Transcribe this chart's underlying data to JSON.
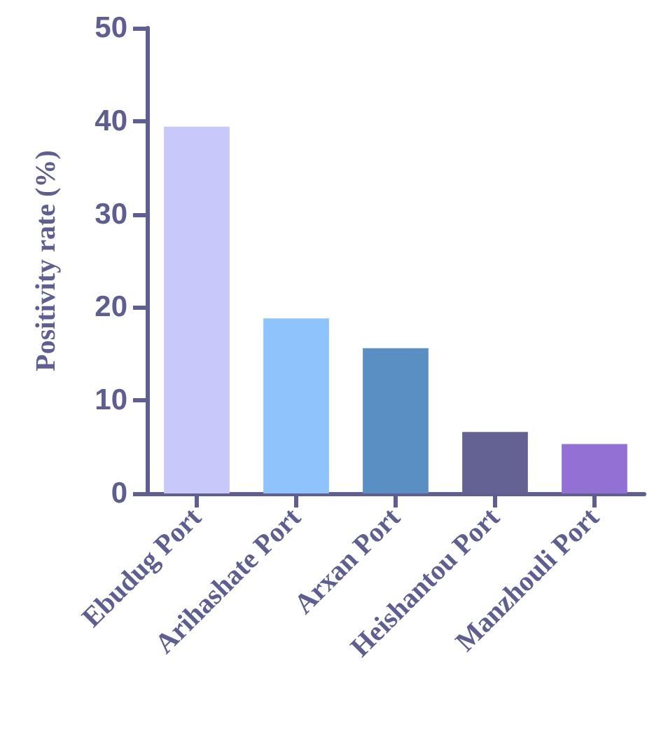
{
  "chart_data": {
    "type": "bar",
    "ylabel": "Positivity rate (%)",
    "categories": [
      "Ebudug Port",
      "Arihashate Port",
      "Arxan Port",
      "Heishantou Port",
      "Manzhouli Port"
    ],
    "values": [
      39.4,
      18.8,
      15.6,
      6.6,
      5.3
    ],
    "colors": [
      "#c8c8fa",
      "#8fc3fb",
      "#5a8fc4",
      "#636293",
      "#9370d3"
    ],
    "ylim": [
      0,
      50
    ],
    "yticks": [
      0,
      10,
      20,
      30,
      40,
      50
    ]
  }
}
